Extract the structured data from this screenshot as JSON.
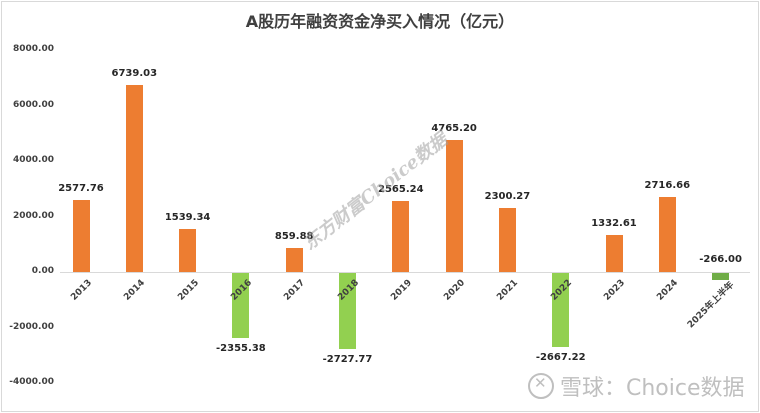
{
  "chart_data": {
    "type": "bar",
    "title": "A股历年融资资金净买入情况（亿元）",
    "xlabel": "",
    "ylabel": "",
    "ylim": [
      -4000,
      8000
    ],
    "yticks": [
      "8000.00",
      "6000.00",
      "4000.00",
      "2000.00",
      "0.00",
      "-2000.00",
      "-4000.00"
    ],
    "grid": false,
    "legend": null,
    "categories": [
      "2013",
      "2014",
      "2015",
      "2016",
      "2017",
      "2018",
      "2019",
      "2020",
      "2021",
      "2022",
      "2023",
      "2024",
      "2025年上半年"
    ],
    "values": [
      2577.76,
      6739.03,
      1539.34,
      -2355.38,
      859.88,
      -2727.77,
      2565.24,
      4765.2,
      2300.27,
      -2667.22,
      1332.61,
      2716.66,
      -266.0
    ],
    "value_labels": [
      "2577.76",
      "6739.03",
      "1539.34",
      "-2355.38",
      "859.88",
      "-2727.77",
      "2565.24",
      "4765.20",
      "2300.27",
      "-2667.22",
      "1332.61",
      "2716.66",
      "-266.00"
    ],
    "colors": {
      "positive": "#ed7d31",
      "negative": "#92d050",
      "last_negative": "#70ad47"
    }
  },
  "watermarks": {
    "diagonal": "东方财富Choice数据",
    "bottom": "雪球：Choice数据"
  }
}
